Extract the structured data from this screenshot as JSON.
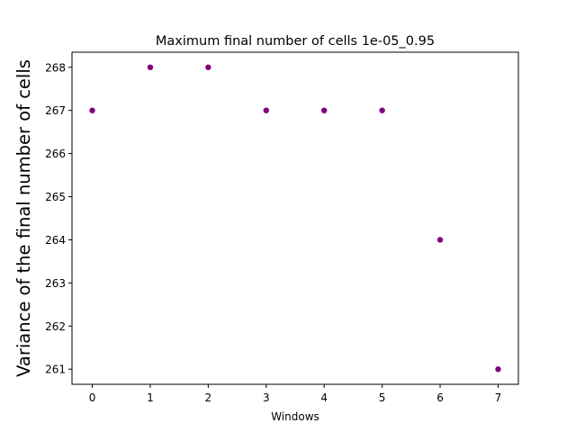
{
  "chart_data": {
    "type": "scatter",
    "title": "Maximum final number of cells 1e-05_0.95",
    "xlabel": "Windows",
    "ylabel": "Variance of the final number of cells",
    "x": [
      0,
      1,
      2,
      3,
      4,
      5,
      6,
      7
    ],
    "y": [
      267,
      268,
      268,
      267,
      267,
      267,
      264,
      261
    ],
    "xlim": [
      -0.35,
      7.35
    ],
    "ylim": [
      260.65,
      268.35
    ],
    "xticks": [
      0,
      1,
      2,
      3,
      4,
      5,
      6,
      7
    ],
    "yticks": [
      261,
      262,
      263,
      264,
      265,
      266,
      267,
      268
    ],
    "marker_color": "#800080",
    "grid": false,
    "legend": false
  }
}
